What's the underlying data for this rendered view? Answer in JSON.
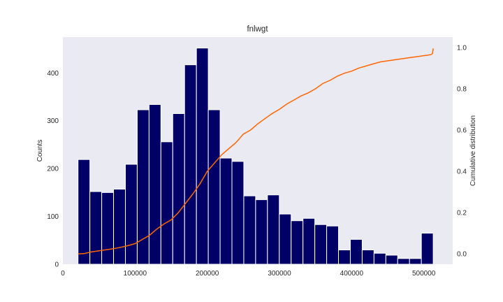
{
  "chart_data": {
    "type": "bar",
    "title": "fnlwgt",
    "xlabel": "",
    "ylabel": "Counts",
    "y2label": "Cumulative distribution",
    "xlim": [
      0,
      540000
    ],
    "ylim": [
      0,
      475
    ],
    "y2lim": [
      -0.05,
      1.05
    ],
    "grid": false,
    "background": "#EAEAF2",
    "bar_color": "#000066",
    "bar_edge_color": "#ffffff",
    "line_color": "#FF6600",
    "x_ticks": [
      0,
      100000,
      200000,
      300000,
      400000,
      500000
    ],
    "x_tick_labels": [
      "0",
      "100000",
      "200000",
      "300000",
      "400000",
      "500000"
    ],
    "y_ticks": [
      0,
      100,
      200,
      300,
      400
    ],
    "y_tick_labels": [
      "0",
      "100",
      "200",
      "300",
      "400"
    ],
    "y2_ticks": [
      0,
      0.2,
      0.4,
      0.6,
      0.8,
      1.0
    ],
    "y2_tick_labels": [
      "0.0",
      "0.2",
      "0.4",
      "0.6",
      "0.8",
      "1.0"
    ],
    "bins": {
      "start": 21000,
      "width": 16400,
      "counts": [
        219,
        152,
        150,
        157,
        209,
        323,
        334,
        256,
        315,
        417,
        452,
        323,
        222,
        215,
        143,
        135,
        145,
        105,
        91,
        96,
        83,
        80,
        30,
        52,
        30,
        23,
        19,
        12,
        12,
        65
      ]
    },
    "cumulative": {
      "x": [
        21000,
        30000,
        40000,
        50000,
        60000,
        70000,
        80000,
        90000,
        100000,
        110000,
        120000,
        130000,
        140000,
        150000,
        160000,
        170000,
        180000,
        190000,
        200000,
        210000,
        220000,
        230000,
        240000,
        250000,
        260000,
        270000,
        280000,
        290000,
        300000,
        310000,
        320000,
        330000,
        340000,
        350000,
        360000,
        370000,
        380000,
        390000,
        400000,
        410000,
        420000,
        430000,
        440000,
        450000,
        460000,
        470000,
        480000,
        490000,
        500000,
        505000,
        510000,
        512000,
        513000
      ],
      "y": [
        0.0,
        0.002,
        0.01,
        0.015,
        0.02,
        0.025,
        0.032,
        0.04,
        0.05,
        0.07,
        0.09,
        0.12,
        0.145,
        0.165,
        0.2,
        0.245,
        0.29,
        0.34,
        0.4,
        0.44,
        0.48,
        0.51,
        0.54,
        0.58,
        0.6,
        0.63,
        0.655,
        0.68,
        0.7,
        0.725,
        0.745,
        0.765,
        0.78,
        0.8,
        0.825,
        0.84,
        0.86,
        0.875,
        0.885,
        0.9,
        0.91,
        0.92,
        0.93,
        0.935,
        0.94,
        0.945,
        0.95,
        0.955,
        0.96,
        0.962,
        0.965,
        0.97,
        0.995
      ]
    }
  }
}
